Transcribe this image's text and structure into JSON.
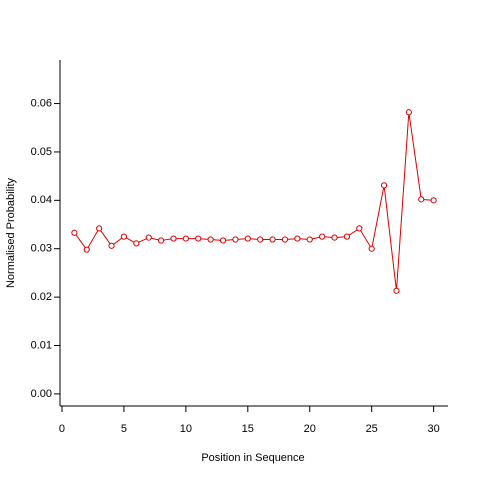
{
  "chart_data": {
    "type": "line",
    "xlabel": "Position in Sequence",
    "ylabel": "Normalised Probability",
    "x": [
      1,
      2,
      3,
      4,
      5,
      6,
      7,
      8,
      9,
      10,
      11,
      12,
      13,
      14,
      15,
      16,
      17,
      18,
      19,
      20,
      21,
      22,
      23,
      24,
      25,
      26,
      27,
      28,
      29,
      30
    ],
    "series": [
      {
        "color": "#dd0000",
        "values": [
          0.0333,
          0.0298,
          0.0342,
          0.0306,
          0.0325,
          0.0311,
          0.0323,
          0.0317,
          0.0321,
          0.0321,
          0.0321,
          0.0319,
          0.0317,
          0.0319,
          0.0321,
          0.0319,
          0.0319,
          0.0319,
          0.0321,
          0.0319,
          0.0325,
          0.0323,
          0.0325,
          0.0342,
          0.03,
          0.0431,
          0.0213,
          0.0582,
          0.0402,
          0.04
        ]
      }
    ],
    "xlim": [
      -0.16,
      31.16
    ],
    "ylim": [
      -0.0025,
      0.069
    ],
    "xticks": [
      0,
      5,
      10,
      15,
      20,
      25,
      30
    ],
    "yticks": [
      {
        "value": 0,
        "label": "0.00"
      },
      0.01,
      0.02,
      0.03,
      0.04,
      0.05,
      0.06
    ]
  }
}
